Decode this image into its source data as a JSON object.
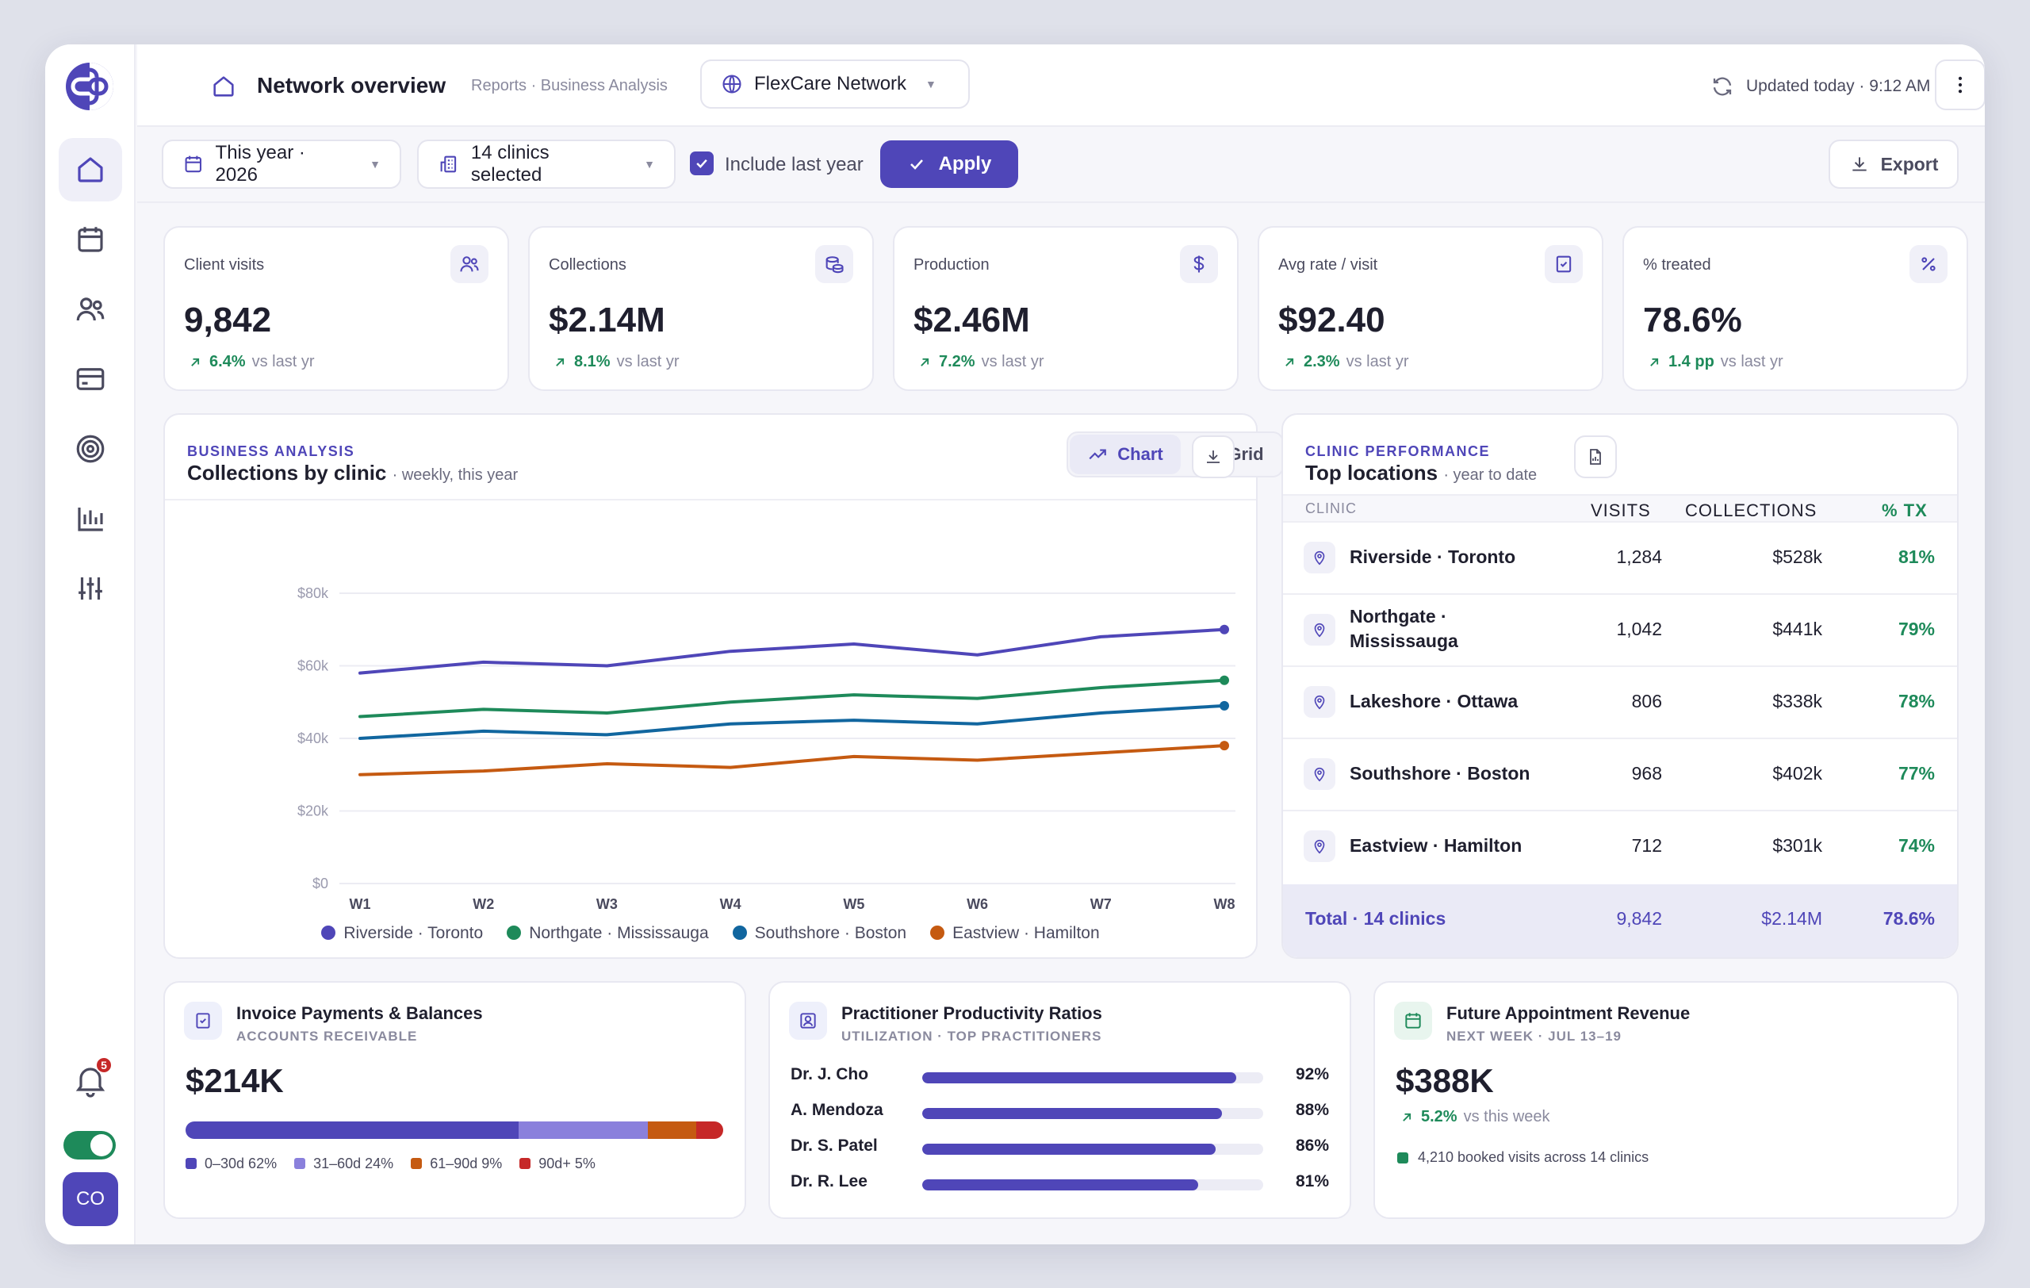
{
  "header": {
    "title": "Network overview",
    "breadcrumb": "Reports · Business Analysis",
    "network": "FlexCare Network",
    "updated": "Updated today · 9:12 AM"
  },
  "filters": {
    "period": "This year · 2026",
    "clinics": "14 clinics selected",
    "include_last_year": "Include last year",
    "apply": "Apply",
    "export": "Export"
  },
  "sidebar": {
    "notifications": "5",
    "avatar": "CO",
    "items": [
      "home-icon",
      "calendar-icon",
      "users-icon",
      "card-icon",
      "target-icon",
      "bar-chart-icon",
      "sliders-icon"
    ]
  },
  "kpis": [
    {
      "label": "Client visits",
      "value": "9,842",
      "delta": "6.4%",
      "compare": "vs last yr",
      "icon": "users-icon"
    },
    {
      "label": "Collections",
      "value": "$2.14M",
      "delta": "8.1%",
      "compare": "vs last yr",
      "icon": "coins-icon"
    },
    {
      "label": "Production",
      "value": "$2.46M",
      "delta": "7.2%",
      "compare": "vs last yr",
      "icon": "dollar-icon"
    },
    {
      "label": "Avg rate / visit",
      "value": "$92.40",
      "delta": "2.3%",
      "compare": "vs last yr",
      "icon": "receipt-icon"
    },
    {
      "label": "% treated",
      "value": "78.6%",
      "delta": "1.4 pp",
      "compare": "vs last yr",
      "icon": "percent-icon"
    }
  ],
  "chart_panel": {
    "eyebrow": "BUSINESS ANALYSIS",
    "title": "Collections by clinic",
    "subtitle": "· weekly, this year",
    "tab_chart": "Chart",
    "tab_grid": "Grid"
  },
  "chart_data": {
    "type": "line",
    "x": [
      "W1",
      "W2",
      "W3",
      "W4",
      "W5",
      "W6",
      "W7",
      "W8"
    ],
    "ylim": [
      0,
      80000
    ],
    "yticks": [
      "$0",
      "$20k",
      "$40k",
      "$60k",
      "$80k"
    ],
    "grid": true,
    "legend": "bottom",
    "series": [
      {
        "name": "Riverside · Toronto",
        "color": "#4f46b8",
        "values": [
          58000,
          61000,
          60000,
          64000,
          66000,
          63000,
          68000,
          70000
        ]
      },
      {
        "name": "Northgate · Mississauga",
        "color": "#1e8a5a",
        "values": [
          46000,
          48000,
          47000,
          50000,
          52000,
          51000,
          54000,
          56000
        ]
      },
      {
        "name": "Southshore · Boston",
        "color": "#11669f",
        "values": [
          40000,
          42000,
          41000,
          44000,
          45000,
          44000,
          47000,
          49000
        ]
      },
      {
        "name": "Eastview · Hamilton",
        "color": "#c55a11",
        "values": [
          30000,
          31000,
          33000,
          32000,
          35000,
          34000,
          36000,
          38000
        ]
      }
    ]
  },
  "locations": {
    "eyebrow": "CLINIC PERFORMANCE",
    "title": "Top locations",
    "subtitle": "· year to date",
    "columns": [
      "CLINIC",
      "VISITS",
      "COLLECTIONS",
      "% TX"
    ],
    "rows": [
      {
        "name": "Riverside · Toronto",
        "visits": "1,284",
        "collections": "$528k",
        "tx": "81%"
      },
      {
        "name": "Northgate · Mississauga",
        "visits": "1,042",
        "collections": "$441k",
        "tx": "79%"
      },
      {
        "name": "Lakeshore · Ottawa",
        "visits": "806",
        "collections": "$338k",
        "tx": "78%"
      },
      {
        "name": "Southshore · Boston",
        "visits": "968",
        "collections": "$402k",
        "tx": "77%"
      },
      {
        "name": "Eastview · Hamilton",
        "visits": "712",
        "collections": "$301k",
        "tx": "74%"
      }
    ],
    "total": {
      "label": "Total · 14 clinics",
      "visits": "9,842",
      "collections": "$2.14M",
      "tx": "78.6%"
    }
  },
  "invoices": {
    "title": "Invoice Payments & Balances",
    "subtitle": "ACCOUNTS RECEIVABLE",
    "value": "$214K",
    "buckets": [
      {
        "label": "0–30d 62%",
        "share": 62,
        "color": "#4f46b8"
      },
      {
        "label": "31–60d 24%",
        "share": 24,
        "color": "#8a80dc"
      },
      {
        "label": "61–90d 9%",
        "share": 9,
        "color": "#c55a11"
      },
      {
        "label": "90d+ 5%",
        "share": 5,
        "color": "#c62828"
      }
    ]
  },
  "productivity": {
    "title": "Practitioner Productivity Ratios",
    "subtitle": "UTILIZATION · TOP PRACTITIONERS",
    "rows": [
      {
        "name": "Dr. J. Cho",
        "pct": "92%",
        "value": 92
      },
      {
        "name": "A. Mendoza",
        "pct": "88%",
        "value": 88
      },
      {
        "name": "Dr. S. Patel",
        "pct": "86%",
        "value": 86
      },
      {
        "name": "Dr. R. Lee",
        "pct": "81%",
        "value": 81
      }
    ]
  },
  "future": {
    "title": "Future Appointment Revenue",
    "subtitle": "NEXT WEEK · JUL 13–19",
    "value": "$388K",
    "delta": "5.2%",
    "compare": "vs this week",
    "note": "4,210 booked visits across 14 clinics"
  }
}
